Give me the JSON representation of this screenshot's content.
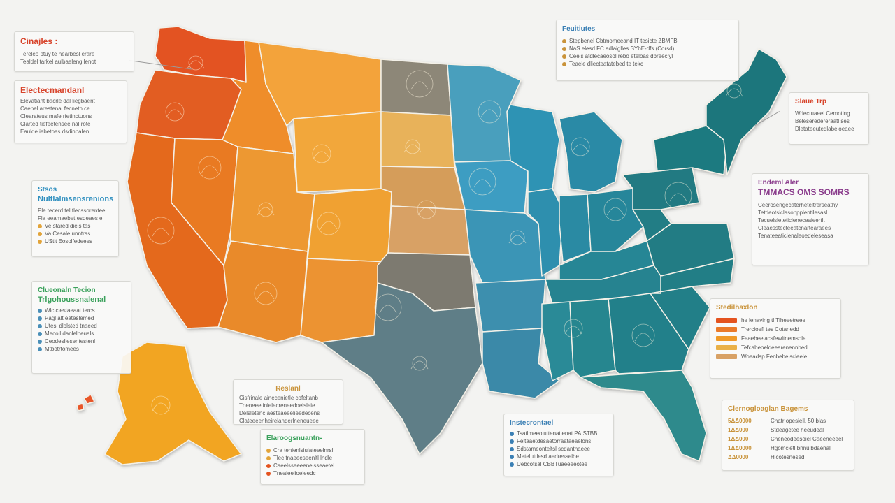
{
  "colors": {
    "west": "#e4531f",
    "mountain": "#f09a28",
    "plains": "#eab148",
    "midwest": "#3f97b8",
    "east": "#1f7f86",
    "south": "#6d6a64",
    "background": "#f3f3f1"
  },
  "map": {
    "states": [
      {
        "name": "WA",
        "color": "#e35321"
      },
      {
        "name": "OR",
        "color": "#e25d22"
      },
      {
        "name": "CA",
        "color": "#e4691f"
      },
      {
        "name": "NV",
        "color": "#e97a24"
      },
      {
        "name": "ID",
        "color": "#ef8d29"
      },
      {
        "name": "MT",
        "color": "#f3a33b"
      },
      {
        "name": "WY",
        "color": "#f2a73a"
      },
      {
        "name": "UT",
        "color": "#ed9830"
      },
      {
        "name": "CO",
        "color": "#f0a131"
      },
      {
        "name": "AZ",
        "color": "#e98a2a"
      },
      {
        "name": "NM",
        "color": "#ec9330"
      },
      {
        "name": "ND",
        "color": "#8d8778"
      },
      {
        "name": "SD",
        "color": "#e8b25a"
      },
      {
        "name": "NE",
        "color": "#d59d5a"
      },
      {
        "name": "KS",
        "color": "#d8a165"
      },
      {
        "name": "OK",
        "color": "#7d7a70"
      },
      {
        "name": "TX",
        "color": "#5e7e87"
      },
      {
        "name": "MN",
        "color": "#4a9fbd"
      },
      {
        "name": "IA",
        "color": "#3d9dc2"
      },
      {
        "name": "MO",
        "color": "#3a95b6"
      },
      {
        "name": "AR",
        "color": "#3e8fae"
      },
      {
        "name": "LA",
        "color": "#3a89a8"
      },
      {
        "name": "WI",
        "color": "#2f93b4"
      },
      {
        "name": "IL",
        "color": "#2d8fae"
      },
      {
        "name": "MI",
        "color": "#2a8aa6"
      },
      {
        "name": "IN",
        "color": "#2a8aa3"
      },
      {
        "name": "OH",
        "color": "#27869a"
      },
      {
        "name": "KY",
        "color": "#268695"
      },
      {
        "name": "TN",
        "color": "#258390"
      },
      {
        "name": "MS",
        "color": "#2b8a97"
      },
      {
        "name": "AL",
        "color": "#27868f"
      },
      {
        "name": "GA",
        "color": "#21808a"
      },
      {
        "name": "FL",
        "color": "#2f8a8c"
      },
      {
        "name": "SC",
        "color": "#237f88"
      },
      {
        "name": "NC",
        "color": "#237e86"
      },
      {
        "name": "VA",
        "color": "#227c84"
      },
      {
        "name": "WV",
        "color": "#247d85"
      },
      {
        "name": "PA",
        "color": "#217a82"
      },
      {
        "name": "NY",
        "color": "#1e7a80"
      },
      {
        "name": "NE-states",
        "color": "#1d767c"
      },
      {
        "name": "AK",
        "color": "#f2a521"
      },
      {
        "name": "HI",
        "color": "#e8562a"
      }
    ]
  },
  "panels": {
    "challenges": {
      "title": "Cinajles :",
      "title_color": "#d7432a",
      "lines": [
        "Tereleo ptuy te nearbesl erare",
        "Tealdel tarkel aulbaeleng lenot"
      ]
    },
    "environment": {
      "title": "Electecmandanl",
      "title_color": "#d7432a",
      "lines": [
        "Elevatiant bacrle dal liegbaent",
        "Caebel arestenal fecnetn ce",
        "Clearateus mafe rfetinctuons",
        "Clarted tiefeetensee nal rote",
        "Eaulde iebetoes dsdinpalen"
      ]
    },
    "nature": {
      "title": "Stsos",
      "sub": "Nultlalmsensrenions",
      "title_color": "#2f8fbf",
      "lines": [
        "Ple tecerd tel tlecssorentee",
        "Fla eeamaebet esdeaes el"
      ],
      "bullets": [
        "Ve stared  diels tas",
        "Va Cesale unntras",
        "UStlt Eosolfedeees"
      ]
    },
    "education": {
      "title": "Clueonaln Tecion",
      "sub": "Trlgohoussnalenal",
      "title_color": "#3aa15b",
      "bullets": [
        "Wlc clestaeaat tercs",
        "Pagl alt eateslemed",
        "Utesl dlolsted tnaeed",
        "Mecoll danlelneuals",
        "Ceodesllesentestenl",
        "Mtbotrtomees"
      ]
    },
    "features": {
      "title": "Feuitiutes",
      "title_color": "#3a7fb4",
      "lines": [
        "Stepbenel Cbtmomeeand IT tesicte ZBMFB",
        "NaS elesd FC adlaiglles SYbE-dfs (Corsd)",
        "Ceels atdlecaeosol rebo eteloas dbreeclyl",
        "Teaele dliecteatatebed te tekc"
      ]
    },
    "tips": {
      "title": "Slaue Trp",
      "title_color": "#d7432a",
      "lines": [
        "Wrlectuaeel Cemoting",
        "Beleseredereraatl ses",
        "Dletateeutedlabeloeaee"
      ]
    },
    "events": {
      "title": "Endeml Aler",
      "sub": "TMMACS OMS SOMRS",
      "title_color": "#8a3c8c",
      "lines": [
        "Ceerosengecaterheteltrerseathy",
        "Tetdeotsiclasonpplentilesasl",
        "Tecuelsleteticleneceaieertlt",
        "Cleaesstecfeeatcnartearaees",
        "Tenateeaticienaleoedeleseasa"
      ]
    },
    "statistics": {
      "title": "Stedilhaxlon",
      "title_color": "#c9933a",
      "rows": [
        "he lenaving tl Tlheeetreee",
        "Trercioefl tes Cotanedd",
        "Feaebeelacsfewltnemsdle",
        "Tefcabeoeldeearenennbed",
        "Woeadsp Fenbebelscleele"
      ]
    },
    "infrastructure": {
      "title": "Instecrontael",
      "title_color": "#3a7fb4",
      "lines": [
        "Tsatlmeeoluttenatienat PAISTBB",
        "Feltaaetdesaetorraataeaelons",
        "Sdstameonteltsl scdantnaeee",
        "Meteluttlesd aedresselbe",
        "Uebcotsal CBBTuaeeeeotee"
      ]
    },
    "festival": {
      "title": "Reslanl",
      "title_color": "#c9933a",
      "lines": [
        "Cisfrinale ainecenietle cofeltanb",
        "Tneneee inlelecreneedoelsleie",
        "Delsletenc aesteaeeelieedecens",
        "Clateeeenheirelanderlneneueee"
      ]
    },
    "economics": {
      "title": "Elaroogsnuantn-",
      "title_color": "#3aa15b",
      "bullets": [
        "Cra tenienlsiulateeelnrsl",
        "Tlec tnaeeeseenltl lndle",
        "Caeelsseeeenelsseaetel",
        "Tnealeelioeleedc"
      ]
    },
    "demographics": {
      "title": "Clernogloaglan Bagems",
      "title_color": "#c9933a",
      "rows": [
        {
          "value": "5ΔΔ0000",
          "text": "Chatr opesiell. 50 blas"
        },
        {
          "value": "1ΔΔ000",
          "text": "Stdeagetee heeudeal"
        },
        {
          "value": "1ΔΔ000",
          "text": "Cheneodeesoiel Caeeneeeel"
        },
        {
          "value": "1ΔΔ0000",
          "text": "Hgomcietl bnnulbdaenal"
        },
        {
          "value": "ΔΔ0000",
          "text": "Hlcotesnesed"
        }
      ]
    }
  }
}
